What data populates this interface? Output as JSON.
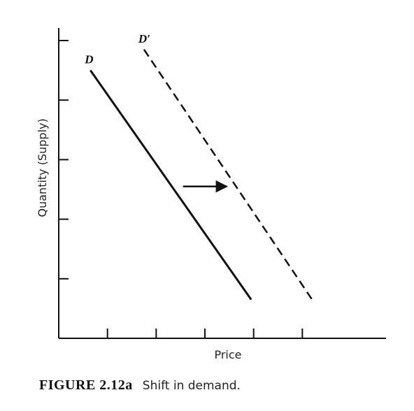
{
  "chart_data": {
    "type": "line",
    "title": "",
    "xlabel": "Price",
    "ylabel": "Quantity (Supply)",
    "xlim": [
      0,
      6
    ],
    "ylim": [
      0,
      5
    ],
    "x_ticks": [
      1,
      2,
      3,
      4,
      5
    ],
    "y_ticks": [
      1,
      2,
      3,
      4,
      5
    ],
    "grid": false,
    "series": [
      {
        "name": "D",
        "style": "solid",
        "points": [
          [
            0.65,
            4.5
          ],
          [
            3.95,
            0.65
          ]
        ]
      },
      {
        "name": "D′",
        "style": "dashed",
        "points": [
          [
            1.75,
            4.85
          ],
          [
            5.2,
            0.65
          ]
        ]
      }
    ],
    "annotations": [
      {
        "type": "arrow",
        "from": [
          2.55,
          2.55
        ],
        "to": [
          3.45,
          2.55
        ]
      }
    ]
  },
  "caption": {
    "label": "FIGURE 2.12a",
    "text": "Shift in demand."
  },
  "colors": {
    "ink": "#111111"
  }
}
